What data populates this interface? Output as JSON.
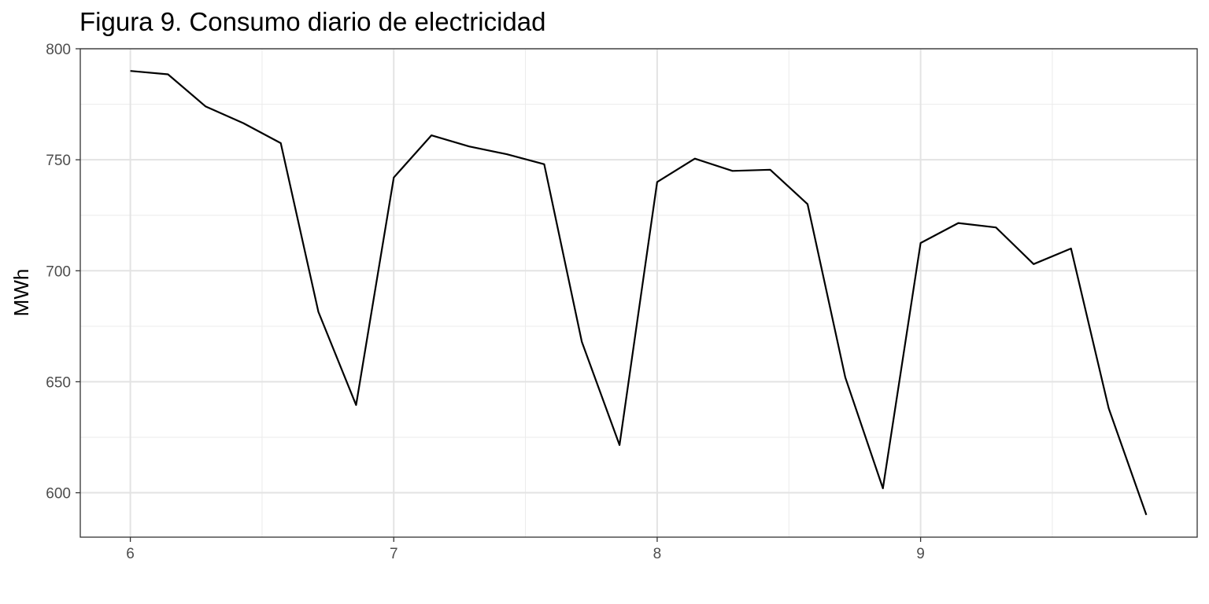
{
  "chart_data": {
    "type": "line",
    "title": "Figura 9. Consumo diario de electricidad",
    "xlabel": "",
    "ylabel": "MWh",
    "xlim": [
      5.81,
      10.05
    ],
    "ylim": [
      580,
      800
    ],
    "x_ticks": [
      6,
      7,
      8,
      9
    ],
    "x_tick_labels": [
      "6",
      "7",
      "8",
      "9"
    ],
    "y_ticks": [
      600,
      650,
      700,
      750,
      800
    ],
    "y_tick_labels": [
      "600",
      "650",
      "700",
      "750",
      "800"
    ],
    "x_minor_ticks": [
      6.5,
      7.5,
      8.5,
      9.5
    ],
    "y_minor_ticks": [
      625,
      675,
      725,
      775
    ],
    "grid": true,
    "legend": "none",
    "series": [
      {
        "color": "#000000",
        "x": [
          6.0,
          6.143,
          6.286,
          6.429,
          6.571,
          6.714,
          6.857,
          7.0,
          7.143,
          7.286,
          7.429,
          7.571,
          7.714,
          7.857,
          8.0,
          8.143,
          8.286,
          8.429,
          8.571,
          8.714,
          8.857,
          9.0,
          9.143,
          9.286,
          9.429,
          9.571,
          9.714,
          9.857
        ],
        "values": [
          790,
          788.5,
          774,
          766.5,
          757.5,
          681.5,
          639.5,
          742,
          761,
          756,
          752.5,
          748,
          668,
          621.5,
          740,
          750.5,
          745,
          745.5,
          730,
          652,
          602,
          712.5,
          721.5,
          719.5,
          703,
          710,
          638,
          590
        ]
      }
    ]
  }
}
